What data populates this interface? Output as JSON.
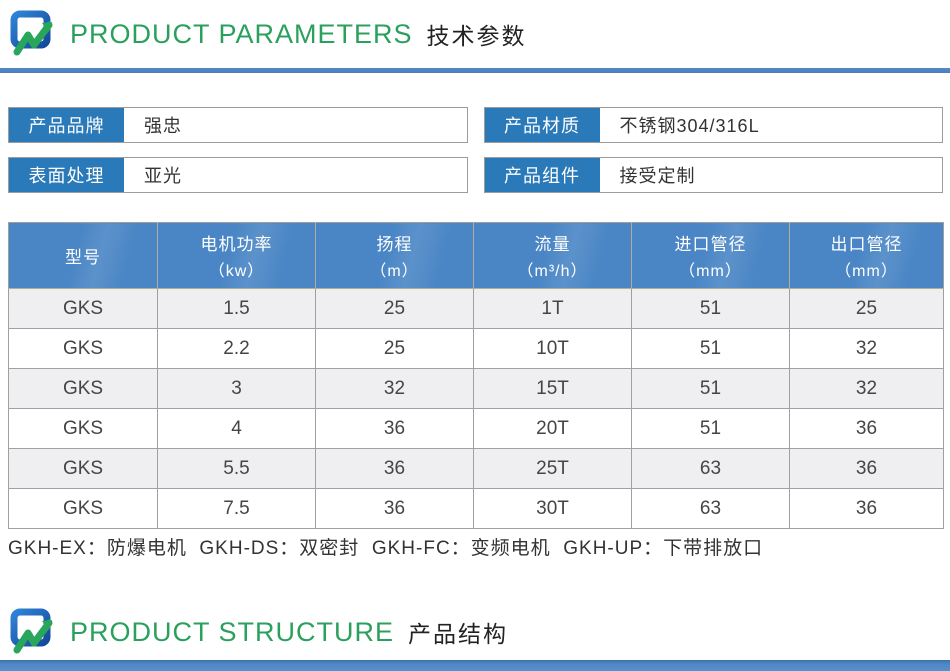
{
  "sections": {
    "parameters": {
      "title_en": "PRODUCT PARAMETERS",
      "title_zh": "技术参数"
    },
    "structure": {
      "title_en": "PRODUCT STRUCTURE",
      "title_zh": "产品结构"
    }
  },
  "info": {
    "fields": [
      {
        "label": "产品品牌",
        "value": "强忠"
      },
      {
        "label": "产品材质",
        "value": "不锈钢304/316L"
      },
      {
        "label": "表面处理",
        "value": "亚光"
      },
      {
        "label": "产品组件",
        "value": "接受定制"
      }
    ]
  },
  "table": {
    "headers": [
      {
        "label": "型号",
        "unit": ""
      },
      {
        "label": "电机功率",
        "unit": "（kw）"
      },
      {
        "label": "扬程",
        "unit": "（m）"
      },
      {
        "label": "流量",
        "unit": "（m³/h）"
      },
      {
        "label": "进口管径",
        "unit": "（mm）"
      },
      {
        "label": "出口管径",
        "unit": "（mm）"
      }
    ],
    "rows": [
      [
        "GKS",
        "1.5",
        "25",
        "1T",
        "51",
        "25"
      ],
      [
        "GKS",
        "2.2",
        "25",
        "10T",
        "51",
        "32"
      ],
      [
        "GKS",
        "3",
        "32",
        "15T",
        "51",
        "32"
      ],
      [
        "GKS",
        "4",
        "36",
        "20T",
        "51",
        "36"
      ],
      [
        "GKS",
        "5.5",
        "36",
        "25T",
        "63",
        "36"
      ],
      [
        "GKS",
        "7.5",
        "36",
        "30T",
        "63",
        "36"
      ]
    ]
  },
  "note": "GKH-EX：防爆电机  GKH-DS：双密封  GKH-FC：变频电机  GKH-UP：下带排放口",
  "colors": {
    "label_blue": "#2a79b8",
    "table_header_blue": "#4a86c5",
    "divider_blue": "#4a7fc0",
    "accent_green": "#2ba05d"
  },
  "icons": {
    "logo": "brand-logo-icon"
  }
}
